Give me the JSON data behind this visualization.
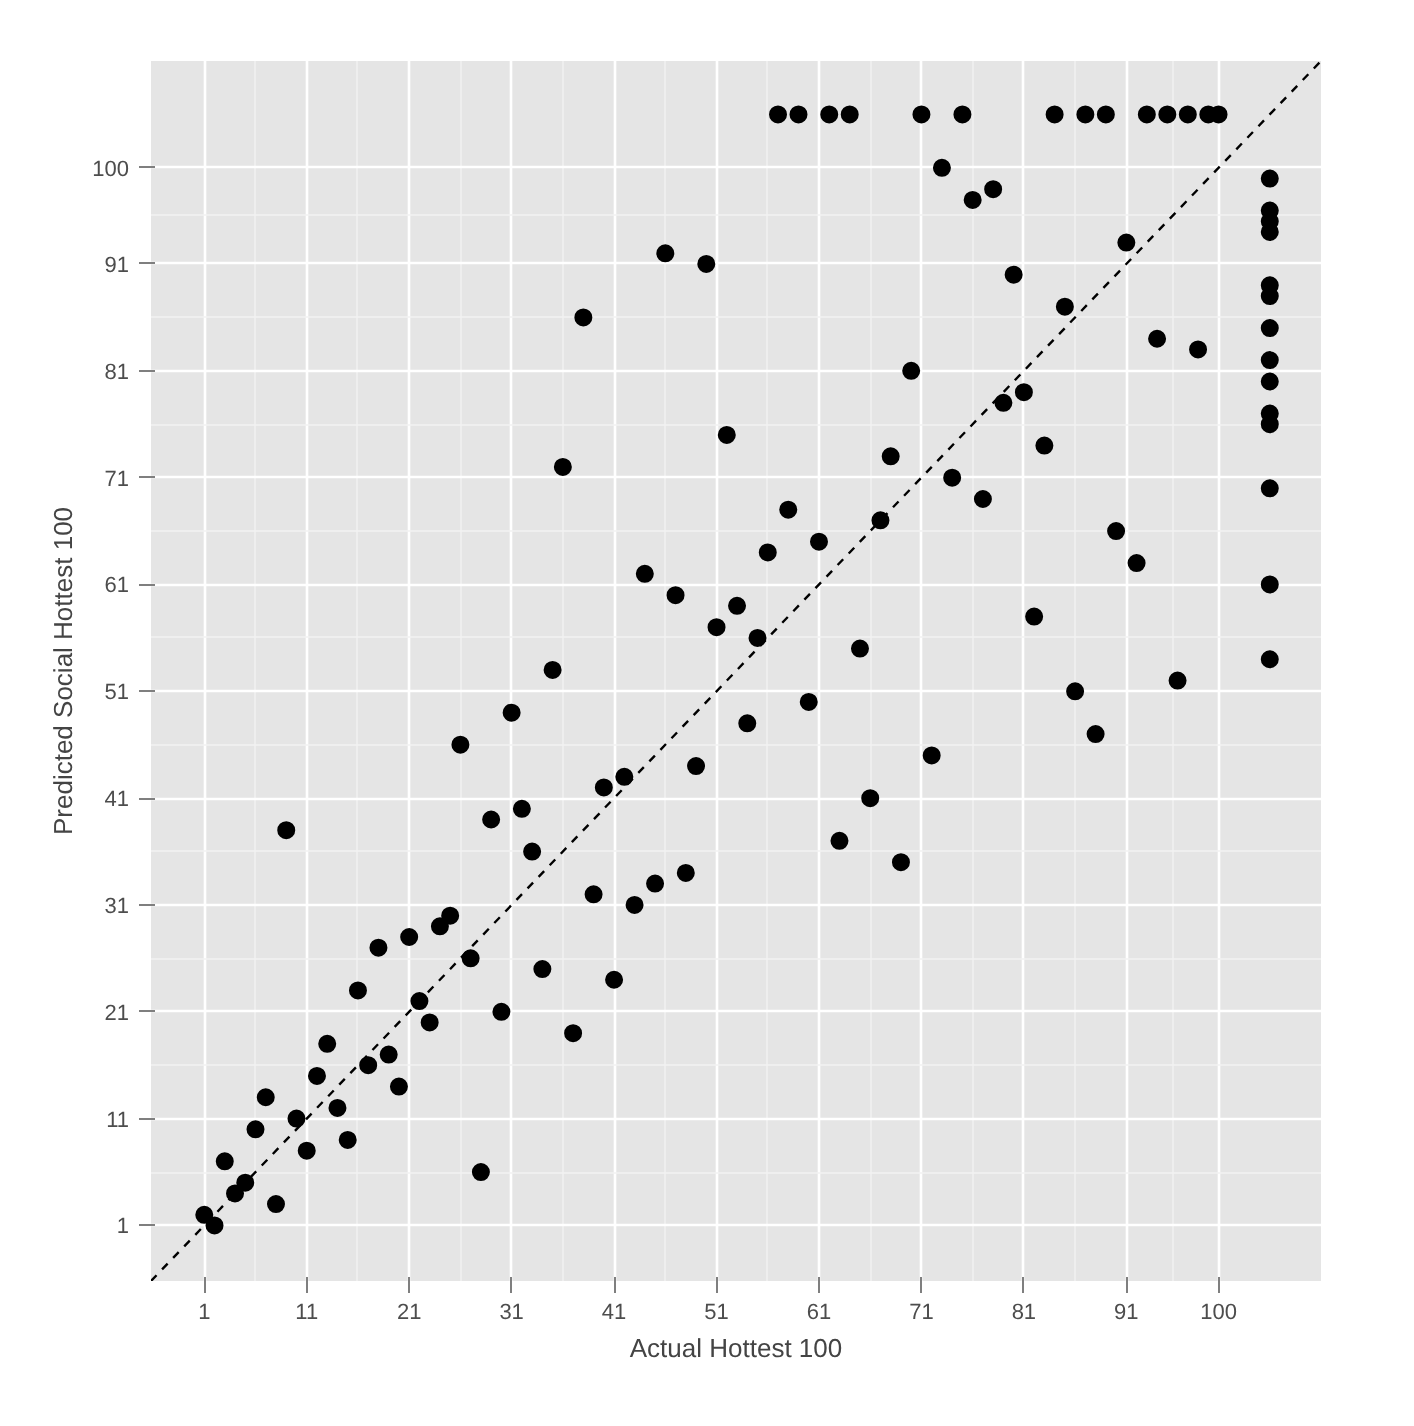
{
  "chart_data": {
    "type": "scatter",
    "xlabel": "Actual Hottest 100",
    "ylabel": "Predicted Social Hottest 100",
    "xlim": [
      -4.2,
      110
    ],
    "ylim": [
      -4.2,
      110
    ],
    "xticks": [
      1,
      11,
      21,
      31,
      41,
      51,
      61,
      71,
      81,
      91,
      100
    ],
    "yticks": [
      1,
      11,
      21,
      31,
      41,
      51,
      61,
      71,
      81,
      91,
      100
    ],
    "grid": true,
    "marker": "circle",
    "series": [
      {
        "color": "#000000",
        "x": [
          1,
          2,
          3,
          4,
          5,
          6,
          7,
          8,
          9,
          10,
          11,
          12,
          13,
          14,
          15,
          16,
          17,
          18,
          19,
          20,
          21,
          22,
          23,
          24,
          25,
          26,
          27,
          28,
          29,
          30,
          31,
          32,
          33,
          34,
          35,
          36,
          37,
          38,
          39,
          40,
          41,
          42,
          43,
          44,
          45,
          46,
          47,
          48,
          49,
          50,
          51,
          52,
          53,
          54,
          55,
          56,
          57,
          58,
          59,
          60,
          61,
          62,
          63,
          64,
          65,
          66,
          67,
          68,
          69,
          70,
          71,
          72,
          73,
          74,
          75,
          76,
          77,
          78,
          79,
          80,
          81,
          82,
          83,
          84,
          85,
          86,
          87,
          88,
          89,
          90,
          91,
          92,
          93,
          94,
          95,
          96,
          97,
          98,
          99,
          100,
          105,
          105,
          105,
          105,
          105,
          105,
          105,
          105,
          105,
          105,
          105,
          105,
          105,
          105
        ],
        "values": [
          2,
          1,
          7,
          4,
          5,
          10,
          13,
          3,
          38,
          11,
          8,
          15,
          18,
          12,
          9,
          23,
          16,
          27,
          17,
          14,
          28,
          22,
          20,
          29,
          30,
          46,
          26,
          6,
          39,
          21,
          49,
          40,
          36,
          25,
          53,
          72,
          19,
          86,
          32,
          42,
          24,
          43,
          31,
          62,
          33,
          92,
          60,
          34,
          44,
          91,
          57,
          75,
          59,
          48,
          56,
          64,
          105,
          68,
          105,
          50,
          65,
          105,
          37,
          105,
          55,
          41,
          67,
          73,
          35,
          81,
          105,
          45,
          100,
          71,
          105,
          97,
          69,
          98,
          78,
          90,
          79,
          58,
          74,
          105,
          87,
          51,
          105,
          47,
          105,
          66,
          93,
          63,
          105,
          84,
          105,
          52,
          105,
          83,
          105,
          105,
          99,
          96,
          95,
          94,
          89,
          88,
          85,
          82,
          80,
          77,
          76,
          70,
          61,
          54
        ]
      },
      {
        "type": "line",
        "color": "#000000",
        "line_style": "dashed",
        "marker": "none",
        "x": [
          -4.2,
          110
        ],
        "values": [
          -4.2,
          110
        ]
      }
    ]
  }
}
